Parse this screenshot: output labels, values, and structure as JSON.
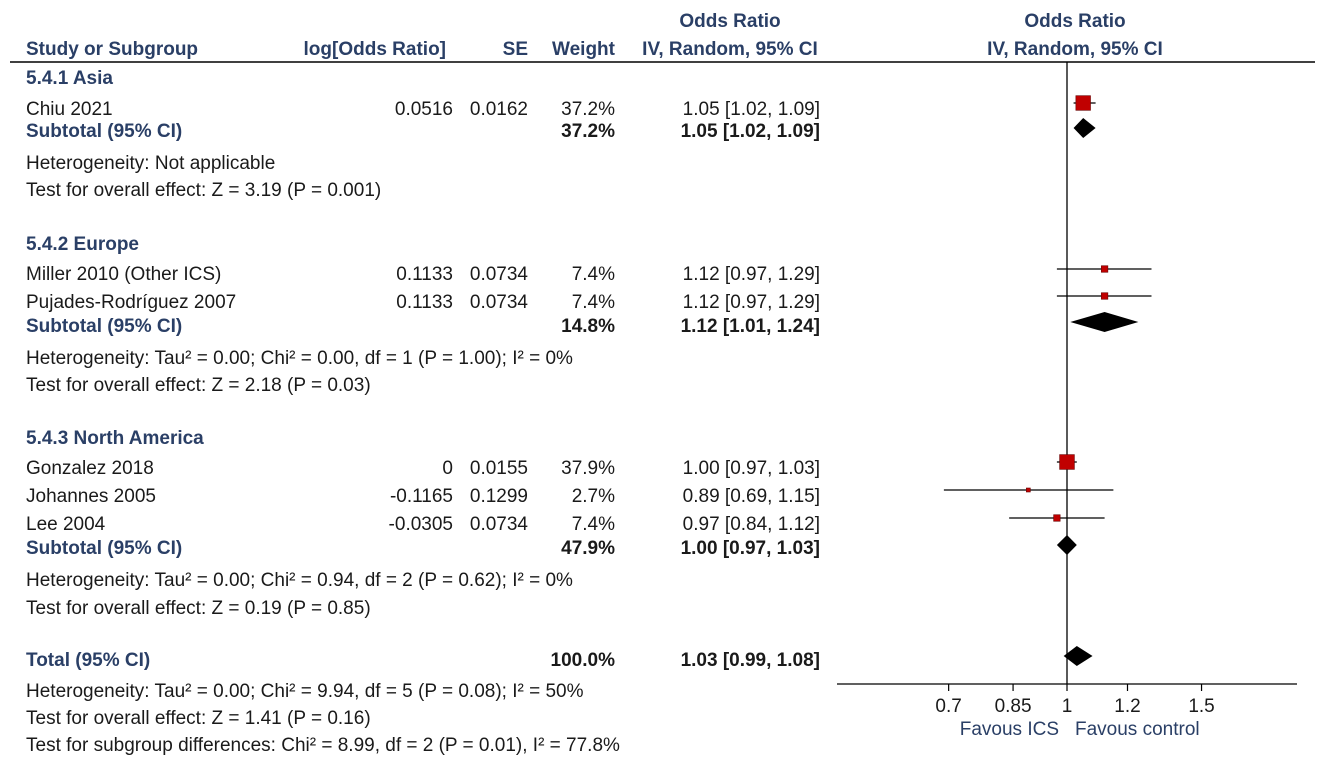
{
  "header": {
    "study": "Study or Subgroup",
    "logor": "log[Odds Ratio]",
    "se": "SE",
    "weight": "Weight",
    "or_title": "Odds Ratio",
    "or_method": "IV, Random, 95% CI",
    "plot_title": "Odds Ratio",
    "plot_method": "IV, Random, 95% CI"
  },
  "groups": [
    {
      "title": "5.4.1 Asia",
      "studies": [
        {
          "name": "Chiu 2021",
          "logor": "0.0516",
          "se": "0.0162",
          "weight": "37.2%",
          "ci": "1.05 [1.02, 1.09]"
        }
      ],
      "subtotal": {
        "label": "Subtotal (95% CI)",
        "weight": "37.2%",
        "ci": "1.05 [1.02, 1.09]"
      },
      "heterogeneity": "Heterogeneity: Not applicable",
      "overall": "Test for overall effect: Z = 3.19 (P = 0.001)"
    },
    {
      "title": "5.4.2 Europe",
      "studies": [
        {
          "name": "Miller 2010 (Other ICS)",
          "logor": "0.1133",
          "se": "0.0734",
          "weight": "7.4%",
          "ci": "1.12 [0.97, 1.29]"
        },
        {
          "name": "Pujades-Rodríguez 2007",
          "logor": "0.1133",
          "se": "0.0734",
          "weight": "7.4%",
          "ci": "1.12 [0.97, 1.29]"
        }
      ],
      "subtotal": {
        "label": "Subtotal (95% CI)",
        "weight": "14.8%",
        "ci": "1.12 [1.01, 1.24]"
      },
      "heterogeneity": "Heterogeneity: Tau² = 0.00; Chi² = 0.00, df = 1 (P = 1.00); I² = 0%",
      "overall": "Test for overall effect: Z = 2.18 (P = 0.03)"
    },
    {
      "title": "5.4.3 North America",
      "studies": [
        {
          "name": "Gonzalez 2018",
          "logor": "0",
          "se": "0.0155",
          "weight": "37.9%",
          "ci": "1.00 [0.97, 1.03]"
        },
        {
          "name": "Johannes 2005",
          "logor": "-0.1165",
          "se": "0.1299",
          "weight": "2.7%",
          "ci": "0.89 [0.69, 1.15]"
        },
        {
          "name": "Lee 2004",
          "logor": "-0.0305",
          "se": "0.0734",
          "weight": "7.4%",
          "ci": "0.97 [0.84, 1.12]"
        }
      ],
      "subtotal": {
        "label": "Subtotal (95% CI)",
        "weight": "47.9%",
        "ci": "1.00 [0.97, 1.03]"
      },
      "heterogeneity": "Heterogeneity: Tau² = 0.00; Chi² = 0.94, df = 2 (P = 0.62); I² = 0%",
      "overall": "Test for overall effect: Z = 0.19 (P = 0.85)"
    }
  ],
  "total": {
    "label": "Total (95% CI)",
    "weight": "100.0%",
    "ci": "1.03 [0.99, 1.08]",
    "heterogeneity": "Heterogeneity: Tau² = 0.00; Chi² = 9.94, df = 5 (P = 0.08); I² = 50%",
    "overall": "Test for overall effect: Z = 1.41 (P = 0.16)",
    "subgroup": "Test for subgroup differences: Chi² = 8.99, df = 2 (P = 0.01), I² = 77.8%"
  },
  "axis": {
    "ticks": [
      "0.7",
      "0.85",
      "1",
      "1.2",
      "1.5"
    ],
    "favours_left": "Favous ICS",
    "favours_right": "Favous control"
  },
  "chart_data": {
    "type": "forest",
    "scale": "log",
    "xlim": [
      0.5,
      2.0
    ],
    "reference_line": 1,
    "studies": [
      {
        "name": "Chiu 2021",
        "or": 1.05,
        "lo": 1.02,
        "hi": 1.09,
        "weight": 37.2
      },
      {
        "name": "Miller 2010 (Other ICS)",
        "or": 1.12,
        "lo": 0.97,
        "hi": 1.29,
        "weight": 7.4
      },
      {
        "name": "Pujades-Rodríguez 2007",
        "or": 1.12,
        "lo": 0.97,
        "hi": 1.29,
        "weight": 7.4
      },
      {
        "name": "Gonzalez 2018",
        "or": 1.0,
        "lo": 0.97,
        "hi": 1.03,
        "weight": 37.9
      },
      {
        "name": "Johannes 2005",
        "or": 0.89,
        "lo": 0.69,
        "hi": 1.15,
        "weight": 2.7
      },
      {
        "name": "Lee 2004",
        "or": 0.97,
        "lo": 0.84,
        "hi": 1.12,
        "weight": 7.4
      }
    ],
    "subtotals": [
      {
        "name": "5.4.1 Asia",
        "or": 1.05,
        "lo": 1.02,
        "hi": 1.09
      },
      {
        "name": "5.4.2 Europe",
        "or": 1.12,
        "lo": 1.01,
        "hi": 1.24
      },
      {
        "name": "5.4.3 North America",
        "or": 1.0,
        "lo": 0.97,
        "hi": 1.03
      },
      {
        "name": "Total",
        "or": 1.03,
        "lo": 0.99,
        "hi": 1.08
      }
    ],
    "tick_values": [
      0.7,
      0.85,
      1,
      1.2,
      1.5
    ],
    "colors": {
      "study_marker": "#c00000",
      "diamond": "#000000",
      "text_header": "#2a3f66"
    }
  }
}
